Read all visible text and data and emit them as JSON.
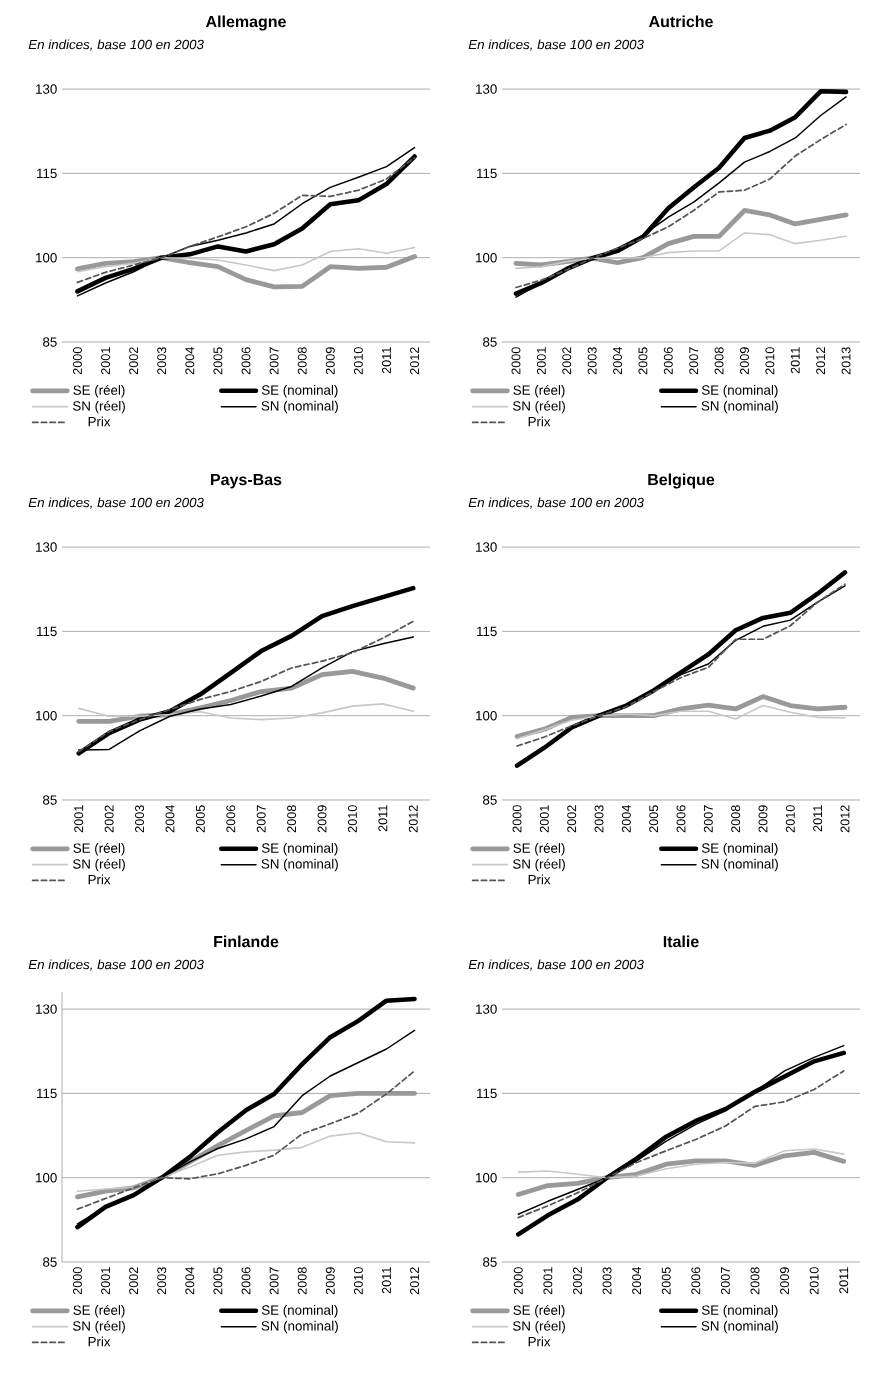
{
  "chart_data": [
    {
      "type": "line",
      "title": "Allemagne",
      "subtitle": "En indices, base 100 en 2003",
      "categories": [
        "2000",
        "2001",
        "2002",
        "2003",
        "2004",
        "2005",
        "2006",
        "2007",
        "2008",
        "2009",
        "2010",
        "2011",
        "2012"
      ],
      "ylim": [
        85,
        130
      ],
      "yticks": [
        85,
        100,
        115,
        130
      ],
      "grid": "y",
      "legend": "bottom",
      "series": [
        {
          "name": "SE (réel)",
          "color": "#999999",
          "values": [
            98.0,
            99.0,
            99.3,
            100,
            99.1,
            98.4,
            96.1,
            94.8,
            94.9,
            98.4,
            98.1,
            98.3,
            100.2
          ]
        },
        {
          "name": "SE (nominal)",
          "color": "#000000",
          "values": [
            94.0,
            96.4,
            98.0,
            100,
            100.6,
            102.0,
            101.1,
            102.4,
            105.2,
            109.5,
            110.2,
            113.1,
            118.0
          ]
        },
        {
          "name": "SN (réel)",
          "color": "#c8c8c8",
          "values": [
            97.5,
            98.4,
            99.0,
            100,
            99.9,
            99.6,
            98.7,
            97.7,
            98.7,
            101.1,
            101.6,
            100.8,
            101.8
          ]
        },
        {
          "name": "SN (nominal)",
          "color": "#000000",
          "values": [
            93.2,
            95.5,
            97.5,
            100,
            102.0,
            103.1,
            104.4,
            106.0,
            109.6,
            112.5,
            114.3,
            116.2,
            119.6
          ]
        },
        {
          "name": "Prix",
          "color": "#555555",
          "line_style": "dashed",
          "values": [
            95.6,
            97.4,
            98.7,
            100,
            102.0,
            103.7,
            105.5,
            107.9,
            111.1,
            110.9,
            112.0,
            114.0,
            117.8
          ]
        }
      ]
    },
    {
      "type": "line",
      "title": "Autriche",
      "subtitle": "En indices, base 100 en 2003",
      "categories": [
        "2000",
        "2001",
        "2002",
        "2003",
        "2004",
        "2005",
        "2006",
        "2007",
        "2008",
        "2009",
        "2010",
        "2011",
        "2012",
        "2013"
      ],
      "ylim": [
        85,
        130
      ],
      "yticks": [
        85,
        100,
        115,
        130
      ],
      "grid": "y",
      "legend": "bottom",
      "series": [
        {
          "name": "SE (réel)",
          "color": "#999999",
          "values": [
            99.0,
            98.7,
            99.3,
            99.9,
            99.1,
            100,
            102.5,
            103.8,
            103.8,
            108.4,
            107.6,
            106.0,
            106.8,
            107.6
          ]
        },
        {
          "name": "SE (nominal)",
          "color": "#000000",
          "values": [
            93.6,
            95.5,
            98.0,
            99.9,
            101.2,
            103.7,
            108.8,
            112.5,
            116.0,
            121.3,
            122.6,
            125.0,
            129.6,
            129.5
          ]
        },
        {
          "name": "SN (réel)",
          "color": "#c8c8c8",
          "values": [
            98.1,
            98.4,
            99.3,
            99.9,
            99.9,
            100,
            100.9,
            101.2,
            101.2,
            104.4,
            104.1,
            102.5,
            103.1,
            103.8
          ]
        },
        {
          "name": "SN (nominal)",
          "color": "#000000",
          "values": [
            93.0,
            95.5,
            98.0,
            99.9,
            101.7,
            104.0,
            107.2,
            109.9,
            113.3,
            117.0,
            118.9,
            121.3,
            125.3,
            128.6
          ]
        },
        {
          "name": "Prix",
          "color": "#555555",
          "line_style": "dashed",
          "values": [
            94.7,
            96.0,
            97.8,
            99.9,
            101.7,
            103.4,
            105.5,
            108.4,
            111.7,
            112.0,
            114.0,
            118.1,
            121.0,
            123.7
          ]
        }
      ]
    },
    {
      "type": "line",
      "title": "Pays-Bas",
      "subtitle": "En indices, base 100 en 2003",
      "categories": [
        "2001",
        "2002",
        "2003",
        "2004",
        "2005",
        "2006",
        "2007",
        "2008",
        "2009",
        "2010",
        "2011",
        "2012"
      ],
      "ylim": [
        85,
        130
      ],
      "yticks": [
        85,
        100,
        115,
        130
      ],
      "grid": "y",
      "legend": "bottom",
      "series": [
        {
          "name": "SE (réel)",
          "color": "#999999",
          "values": [
            99.0,
            99.0,
            99.9,
            100.2,
            101.4,
            102.7,
            104.3,
            104.9,
            107.3,
            107.9,
            106.7,
            104.9
          ]
        },
        {
          "name": "SE (nominal)",
          "color": "#000000",
          "values": [
            93.3,
            96.9,
            99.3,
            100.8,
            103.8,
            107.6,
            111.5,
            114.2,
            117.7,
            119.5,
            121.1,
            122.7
          ]
        },
        {
          "name": "SN (réel)",
          "color": "#c8c8c8",
          "values": [
            101.3,
            99.9,
            99.9,
            100.2,
            100.7,
            99.6,
            99.3,
            99.6,
            100.5,
            101.7,
            102.1,
            100.8
          ]
        },
        {
          "name": "SN (nominal)",
          "color": "#000000",
          "values": [
            93.9,
            94.0,
            97.3,
            99.9,
            101.2,
            102.0,
            103.5,
            105.2,
            108.5,
            111.4,
            112.8,
            114.0
          ]
        },
        {
          "name": "Prix",
          "color": "#555555",
          "line_style": "dashed",
          "values": [
            93.6,
            97.2,
            99.3,
            101.1,
            102.9,
            104.3,
            106.1,
            108.5,
            109.7,
            111.2,
            113.8,
            116.8
          ]
        }
      ]
    },
    {
      "type": "line",
      "title": "Belgique",
      "subtitle": "En indices, base 100 en 2003",
      "categories": [
        "2000",
        "2001",
        "2002",
        "2003",
        "2004",
        "2005",
        "2006",
        "2007",
        "2008",
        "2009",
        "2010",
        "2011",
        "2012"
      ],
      "ylim": [
        85,
        130
      ],
      "yticks": [
        85,
        100,
        115,
        130
      ],
      "grid": "y",
      "legend": "bottom",
      "series": [
        {
          "name": "SE (réel)",
          "color": "#999999",
          "values": [
            96.3,
            97.6,
            99.7,
            100,
            100,
            100,
            101.2,
            101.9,
            101.2,
            103.4,
            101.8,
            101.2,
            101.5
          ]
        },
        {
          "name": "SE (nominal)",
          "color": "#000000",
          "values": [
            91.1,
            94.3,
            97.9,
            100,
            101.8,
            104.5,
            107.7,
            110.9,
            115.2,
            117.4,
            118.3,
            121.7,
            125.5
          ]
        },
        {
          "name": "SN (réel)",
          "color": "#c8c8c8",
          "values": [
            95.9,
            97.5,
            99.2,
            100,
            100.3,
            100,
            100.8,
            100.8,
            99.4,
            101.8,
            100.6,
            99.7,
            99.6
          ]
        },
        {
          "name": "SN (nominal)",
          "color": "#000000",
          "values": [
            91.1,
            94.3,
            97.9,
            100,
            101.8,
            104.5,
            107.3,
            109.2,
            113.4,
            115.9,
            117.0,
            120.2,
            123.1
          ]
        },
        {
          "name": "Prix",
          "color": "#555555",
          "line_style": "dashed",
          "values": [
            94.6,
            96.2,
            98.2,
            100,
            101.6,
            104.3,
            106.8,
            108.6,
            113.6,
            113.6,
            116.0,
            120.2,
            123.4
          ]
        }
      ]
    },
    {
      "type": "line",
      "title": "Finlande",
      "subtitle": "En indices, base 100 en 2003",
      "categories": [
        "2000",
        "2001",
        "2002",
        "2003",
        "2004",
        "2005",
        "2006",
        "2007",
        "2008",
        "2009",
        "2010",
        "2011",
        "2012"
      ],
      "ylim": [
        85,
        133
      ],
      "yticks": [
        85,
        100,
        115,
        130
      ],
      "grid": "y",
      "legend": "bottom",
      "series": [
        {
          "name": "SE (réel)",
          "color": "#999999",
          "values": [
            96.6,
            97.6,
            98.2,
            100,
            102.8,
            105.7,
            108.4,
            111.0,
            111.6,
            114.6,
            115.0,
            115.0,
            115.0
          ]
        },
        {
          "name": "SE (nominal)",
          "color": "#000000",
          "values": [
            91.2,
            94.8,
            96.9,
            100,
            103.7,
            108.1,
            112.0,
            114.9,
            120.2,
            125.0,
            127.9,
            131.5,
            131.8
          ]
        },
        {
          "name": "SN (réel)",
          "color": "#c8c8c8",
          "values": [
            97.6,
            98.0,
            98.3,
            100,
            101.9,
            104.0,
            104.6,
            104.9,
            105.4,
            107.4,
            108.0,
            106.4,
            106.2
          ]
        },
        {
          "name": "SN (nominal)",
          "color": "#000000",
          "values": [
            91.8,
            94.8,
            96.9,
            100,
            102.8,
            105.2,
            106.9,
            109.1,
            114.6,
            118.1,
            120.5,
            122.9,
            126.2
          ]
        },
        {
          "name": "Prix",
          "color": "#555555",
          "line_style": "dashed",
          "values": [
            94.4,
            96.3,
            98.2,
            100,
            99.8,
            100.7,
            102.2,
            104.0,
            107.8,
            109.6,
            111.5,
            114.9,
            119.0
          ]
        }
      ]
    },
    {
      "type": "line",
      "title": "Italie",
      "subtitle": "En indices, base 100 en 2003",
      "categories": [
        "2000",
        "2001",
        "2002",
        "2003",
        "2004",
        "2005",
        "2006",
        "2007",
        "2008",
        "2009",
        "2010",
        "2011"
      ],
      "ylim": [
        85,
        130
      ],
      "yticks": [
        85,
        100,
        115,
        130
      ],
      "grid": "y",
      "legend": "bottom",
      "series": [
        {
          "name": "SE (réel)",
          "color": "#999999",
          "values": [
            97.0,
            98.6,
            99.0,
            100,
            100.6,
            102.4,
            103.0,
            103.0,
            102.2,
            103.9,
            104.5,
            102.9
          ]
        },
        {
          "name": "SE (nominal)",
          "color": "#000000",
          "values": [
            89.9,
            93.3,
            96.1,
            100,
            103.4,
            107.3,
            110.1,
            112.2,
            115.3,
            118.0,
            120.7,
            122.2
          ]
        },
        {
          "name": "SN (réel)",
          "color": "#c8c8c8",
          "values": [
            101.0,
            101.2,
            100.6,
            100,
            100.3,
            101.6,
            102.4,
            102.7,
            102.6,
            104.8,
            105.1,
            104.2
          ]
        },
        {
          "name": "SN (nominal)",
          "color": "#000000",
          "values": [
            93.5,
            95.8,
            97.9,
            100,
            103.0,
            106.5,
            109.5,
            111.9,
            115.3,
            119.0,
            121.4,
            123.5
          ]
        },
        {
          "name": "Prix",
          "color": "#555555",
          "line_style": "dashed",
          "values": [
            92.9,
            95.0,
            97.3,
            100,
            102.7,
            104.8,
            106.8,
            109.2,
            112.7,
            113.5,
            115.7,
            119.0
          ]
        }
      ]
    }
  ]
}
